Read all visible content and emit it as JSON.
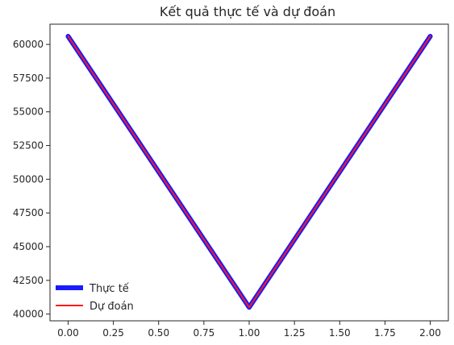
{
  "chart_data": {
    "type": "line",
    "title": "Kết quả thực tế và dự đoán",
    "xlabel": "",
    "ylabel": "",
    "x": [
      0.0,
      1.0,
      2.0
    ],
    "xlim": [
      -0.1,
      2.1
    ],
    "ylim": [
      39500,
      61500
    ],
    "xticks": [
      0.0,
      0.25,
      0.5,
      0.75,
      1.0,
      1.25,
      1.5,
      1.75,
      2.0
    ],
    "xtick_labels": [
      "0.00",
      "0.25",
      "0.50",
      "0.75",
      "1.00",
      "1.25",
      "1.50",
      "1.75",
      "2.00"
    ],
    "yticks": [
      40000,
      42500,
      45000,
      47500,
      50000,
      52500,
      55000,
      57500,
      60000
    ],
    "ytick_labels": [
      "40000",
      "42500",
      "45000",
      "47500",
      "50000",
      "52500",
      "55000",
      "57500",
      "60000"
    ],
    "grid": false,
    "legend_position": "lower-left",
    "series": [
      {
        "name": "Thực tế",
        "values": [
          60600,
          40500,
          60600
        ],
        "color": "#1a1aff"
      },
      {
        "name": "Dự đoán",
        "values": [
          60600,
          40500,
          60600
        ],
        "color": "#ff1a1a"
      }
    ]
  }
}
